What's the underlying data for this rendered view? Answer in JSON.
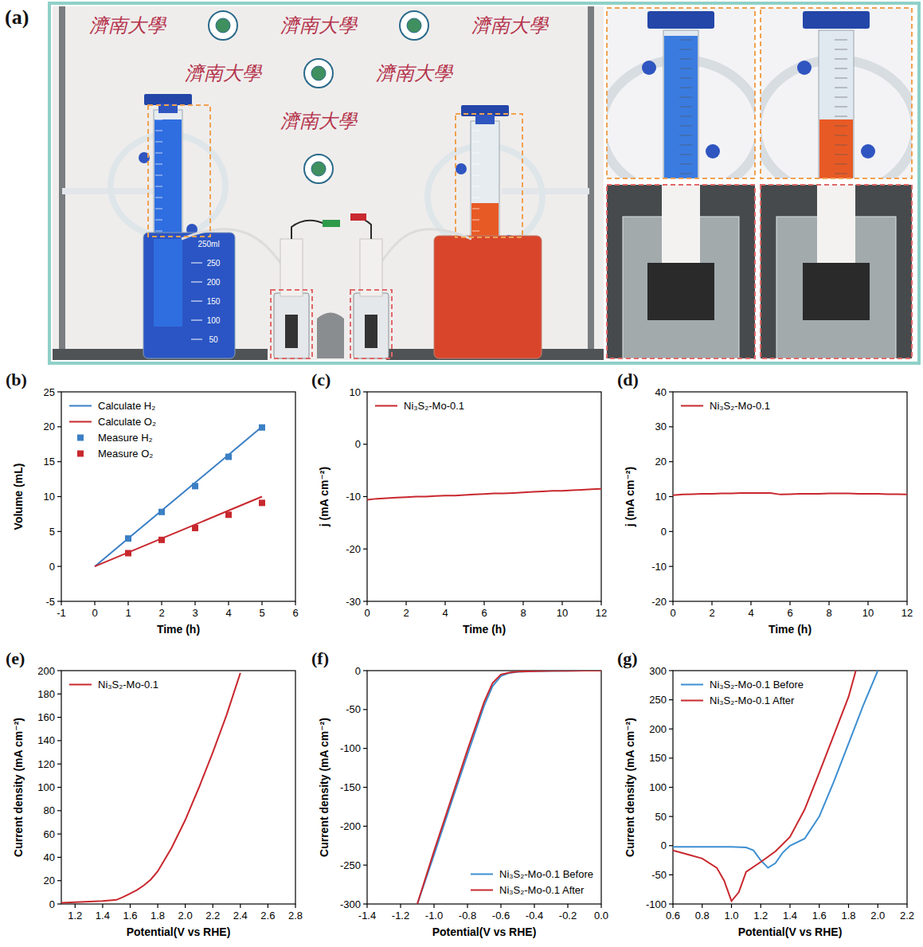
{
  "panel_a": {
    "label": "(a)",
    "background_text": "濟南大學",
    "beaker_text": [
      "250ml",
      "250",
      "200",
      "150",
      "100",
      "50"
    ]
  },
  "chart_data": [
    {
      "label": "(b)",
      "type": "line",
      "xlabel": "Time (h)",
      "ylabel": "Volume (mL)",
      "x": [
        0,
        1,
        2,
        3,
        4,
        5
      ],
      "xlim": [
        -1,
        6
      ],
      "xticks": [
        -1,
        0,
        1,
        2,
        3,
        4,
        5,
        6
      ],
      "ylim": [
        -5,
        25
      ],
      "yticks": [
        -5,
        0,
        5,
        10,
        15,
        20,
        25
      ],
      "legend": "upper left",
      "series": [
        {
          "name": "Calculate H₂",
          "color": "#3b7fc4",
          "type": "line",
          "line_style": "solid",
          "values": [
            0,
            4,
            8,
            12,
            16,
            20
          ]
        },
        {
          "name": "Calculate O₂",
          "color": "#c8282e",
          "type": "line",
          "line_style": "solid",
          "values": [
            0,
            2,
            4,
            6,
            8,
            10
          ]
        },
        {
          "name": "Measure H₂",
          "color": "#3b7fc4",
          "type": "scatter",
          "marker": "square",
          "values": [
            null,
            4.0,
            7.8,
            11.5,
            15.7,
            19.9
          ]
        },
        {
          "name": "Measure O₂",
          "color": "#c8282e",
          "type": "scatter",
          "marker": "square",
          "values": [
            null,
            1.9,
            3.8,
            5.5,
            7.4,
            9.1
          ]
        }
      ]
    },
    {
      "label": "(c)",
      "type": "line",
      "xlabel": "Time (h)",
      "ylabel": "j (mA cm⁻²)",
      "x": [
        0,
        0.5,
        1,
        1.5,
        2,
        2.5,
        3,
        3.5,
        4,
        4.5,
        5,
        5.5,
        6,
        6.5,
        7,
        7.5,
        8,
        8.5,
        9,
        9.5,
        10,
        10.5,
        11,
        11.5,
        12
      ],
      "xlim": [
        0,
        12
      ],
      "xticks": [
        0,
        2,
        4,
        6,
        8,
        10,
        12
      ],
      "ylim": [
        -30,
        10
      ],
      "yticks": [
        -30,
        -20,
        -10,
        0,
        10
      ],
      "legend": "upper left",
      "series": [
        {
          "name": "Ni₃S₂-Mo-0.1",
          "color": "#c8282e",
          "line_style": "solid",
          "values": [
            -10.6,
            -10.4,
            -10.3,
            -10.2,
            -10.1,
            -10.0,
            -10.0,
            -9.9,
            -9.8,
            -9.8,
            -9.7,
            -9.6,
            -9.5,
            -9.4,
            -9.4,
            -9.3,
            -9.2,
            -9.1,
            -9.0,
            -8.9,
            -8.9,
            -8.8,
            -8.7,
            -8.6,
            -8.5
          ]
        }
      ]
    },
    {
      "label": "(d)",
      "type": "line",
      "xlabel": "Time (h)",
      "ylabel": "j (mA cm⁻²)",
      "x": [
        0,
        0.5,
        1,
        1.5,
        2,
        2.5,
        3,
        3.5,
        4,
        4.5,
        5,
        5.5,
        6,
        6.5,
        7,
        7.5,
        8,
        8.5,
        9,
        9.5,
        10,
        10.5,
        11,
        11.5,
        12
      ],
      "xlim": [
        0,
        12
      ],
      "xticks": [
        0,
        2,
        4,
        6,
        8,
        10,
        12
      ],
      "ylim": [
        -20,
        40
      ],
      "yticks": [
        -20,
        -10,
        0,
        10,
        20,
        30,
        40
      ],
      "legend": "upper left",
      "series": [
        {
          "name": "Ni₃S₂-Mo-0.1",
          "color": "#c8282e",
          "line_style": "solid",
          "values": [
            10.4,
            10.6,
            10.7,
            10.8,
            10.8,
            10.9,
            10.9,
            11.0,
            11.0,
            11.0,
            11.0,
            10.6,
            10.7,
            10.8,
            10.8,
            10.8,
            10.9,
            10.9,
            10.9,
            10.8,
            10.8,
            10.8,
            10.7,
            10.7,
            10.6
          ]
        }
      ]
    },
    {
      "label": "(e)",
      "type": "line",
      "xlabel": "Potential(V vs RHE)",
      "ylabel": "Current density (mA cm⁻²)",
      "x": [
        1.1,
        1.2,
        1.3,
        1.4,
        1.5,
        1.55,
        1.6,
        1.65,
        1.7,
        1.75,
        1.8,
        1.9,
        2.0,
        2.1,
        2.2,
        2.3,
        2.4
      ],
      "xlim": [
        1.1,
        2.8
      ],
      "xticks": [
        1.2,
        1.4,
        1.6,
        1.8,
        {
          "value": 2,
          "label": "2.0"
        },
        2.2,
        2.4,
        2.6,
        2.8
      ],
      "ylim": [
        0,
        200
      ],
      "yticks": [
        0,
        20,
        40,
        60,
        80,
        100,
        120,
        140,
        160,
        180,
        200
      ],
      "legend": "upper left",
      "series": [
        {
          "name": "Ni₃S₂-Mo-0.1",
          "color": "#c8282e",
          "line_style": "solid",
          "values": [
            1,
            1.5,
            2,
            2.5,
            3.5,
            6,
            9,
            12,
            16,
            21,
            28,
            48,
            72,
            100,
            130,
            162,
            198
          ]
        }
      ]
    },
    {
      "label": "(f)",
      "type": "line",
      "xlabel": "Potential(V vs RHE)",
      "ylabel": "Current density (mA cm⁻²)",
      "xlim": [
        -1.4,
        0
      ],
      "xticks": [
        -1.4,
        -1.2,
        {
          "value": -1,
          "label": "-1.0"
        },
        -0.8,
        -0.6,
        -0.4,
        -0.2,
        {
          "value": 0,
          "label": "0.0"
        }
      ],
      "ylim": [
        -300,
        0
      ],
      "yticks": [
        -300,
        -250,
        -200,
        -150,
        -100,
        -50,
        0
      ],
      "legend": "lower right",
      "series": [
        {
          "name": "Ni₃S₂-Mo-0.1 Before",
          "color": "#3d8fd1",
          "line_style": "solid",
          "x": [
            -1.1,
            -1.0,
            -0.9,
            -0.8,
            -0.7,
            -0.65,
            -0.6,
            -0.55,
            -0.5,
            -0.4,
            -0.3,
            -0.2,
            -0.1,
            0
          ],
          "values": [
            -300,
            -237,
            -172,
            -108,
            -45,
            -20,
            -7,
            -3,
            -1.5,
            -0.8,
            -0.4,
            -0.2,
            -0.1,
            0
          ]
        },
        {
          "name": "Ni₃S₂-Mo-0.1 After",
          "color": "#c8282e",
          "line_style": "solid",
          "x": [
            -1.1,
            -1.0,
            -0.9,
            -0.8,
            -0.7,
            -0.65,
            -0.6,
            -0.55,
            -0.5,
            -0.4,
            -0.3,
            -0.2,
            -0.1,
            0
          ],
          "values": [
            -300,
            -232,
            -167,
            -102,
            -40,
            -16,
            -5,
            -2.5,
            -1.2,
            -0.7,
            -0.3,
            -0.2,
            -0.1,
            0
          ]
        }
      ]
    },
    {
      "label": "(g)",
      "type": "line",
      "xlabel": "Potential(V vs RHE)",
      "ylabel": "Current density (mA cm⁻²)",
      "xlim": [
        0.6,
        2.2
      ],
      "xticks": [
        0.6,
        0.8,
        {
          "value": 1,
          "label": "1.0"
        },
        1.2,
        1.4,
        1.6,
        1.8,
        {
          "value": 2,
          "label": "2.0"
        },
        2.2
      ],
      "ylim": [
        -100,
        300
      ],
      "yticks": [
        -100,
        -50,
        0,
        50,
        100,
        150,
        200,
        250,
        300
      ],
      "legend": "upper left",
      "series": [
        {
          "name": "Ni₃S₂-Mo-0.1 Before",
          "color": "#3d8fd1",
          "line_style": "solid",
          "x": [
            0.6,
            0.8,
            1.0,
            1.1,
            1.15,
            1.2,
            1.25,
            1.3,
            1.35,
            1.4,
            1.5,
            1.6,
            1.7,
            1.8,
            1.9,
            2.0
          ],
          "values": [
            -2,
            -2,
            -2,
            -3,
            -8,
            -25,
            -38,
            -30,
            -12,
            0,
            12,
            50,
            110,
            175,
            240,
            300
          ]
        },
        {
          "name": "Ni₃S₂-Mo-0.1 After",
          "color": "#c8282e",
          "line_style": "solid",
          "x": [
            0.6,
            0.7,
            0.8,
            0.9,
            0.95,
            1.0,
            1.05,
            1.1,
            1.2,
            1.3,
            1.4,
            1.5,
            1.6,
            1.7,
            1.8,
            1.85
          ],
          "values": [
            -8,
            -15,
            -22,
            -38,
            -60,
            -95,
            -80,
            -45,
            -28,
            -10,
            15,
            62,
            125,
            190,
            255,
            300
          ]
        }
      ]
    }
  ]
}
